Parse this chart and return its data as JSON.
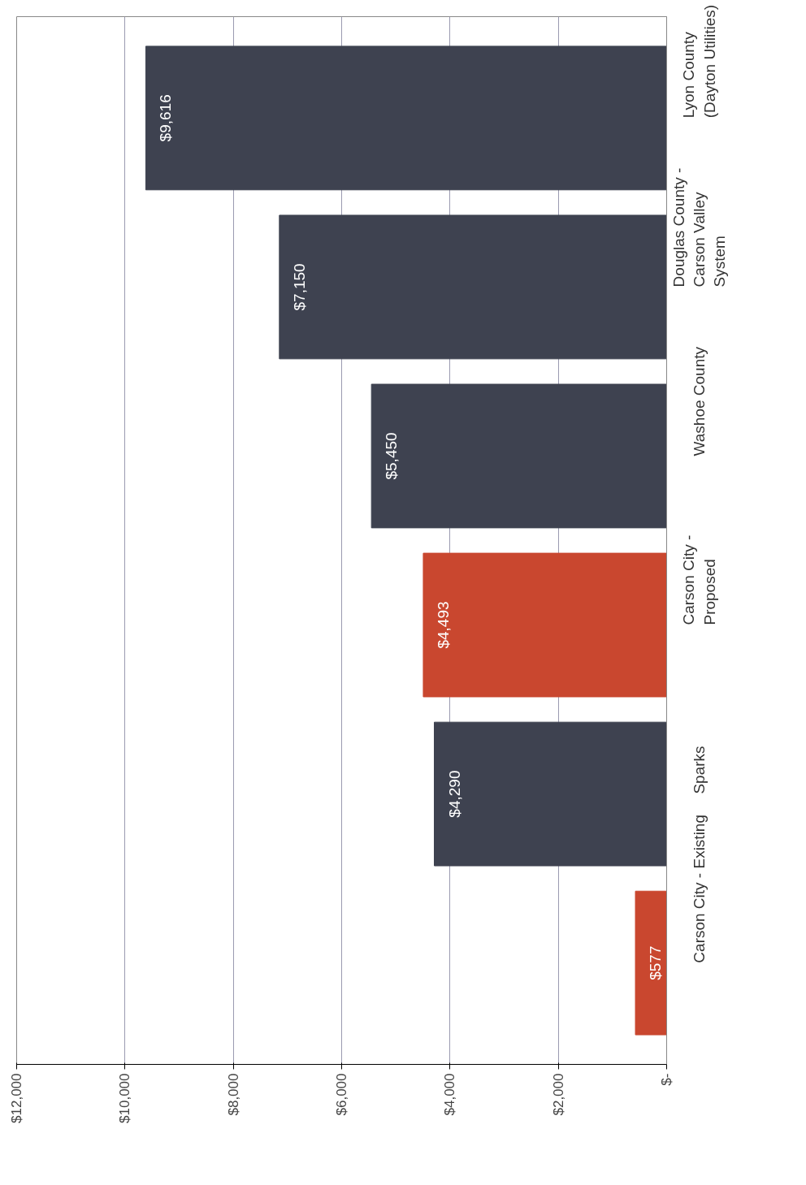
{
  "chart_data": {
    "type": "bar",
    "orientation": "horizontal",
    "categories": [
      "Lyon County\n(Dayton Utilities)",
      "Douglas County -\nCarson Valley\nSystem",
      "Washoe County",
      "Carson City -\nProposed",
      "Sparks",
      "Carson City - Existing"
    ],
    "values": [
      9616,
      7150,
      5450,
      4493,
      4290,
      577
    ],
    "colors": [
      "#3e4250",
      "#3e4250",
      "#3e4250",
      "#c9472f",
      "#3e4250",
      "#c9472f"
    ],
    "value_labels": [
      "$9,616",
      "$7,150",
      "$5,450",
      "$4,493",
      "$4,290",
      "$577"
    ],
    "xlim": [
      12000,
      0
    ],
    "xticks": [
      {
        "value": 0,
        "label": "$-"
      },
      {
        "value": 2000,
        "label": "$2,000"
      },
      {
        "value": 4000,
        "label": "$4,000"
      },
      {
        "value": 6000,
        "label": "$6,000"
      },
      {
        "value": 8000,
        "label": "$8,000"
      },
      {
        "value": 10000,
        "label": "$10,000"
      },
      {
        "value": 12000,
        "label": "$12,000"
      }
    ],
    "grid": "x"
  }
}
